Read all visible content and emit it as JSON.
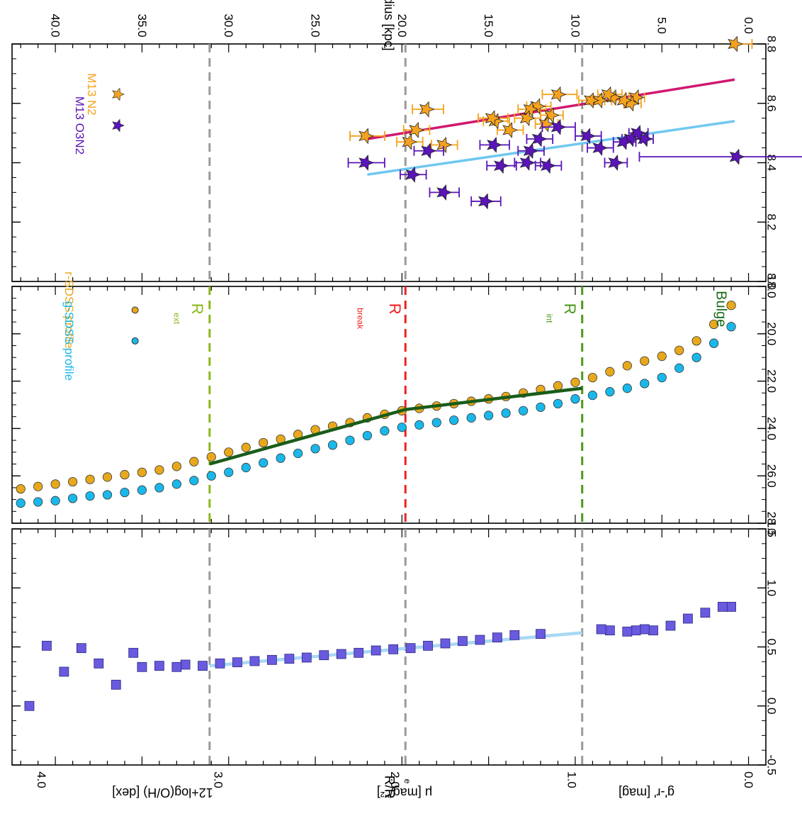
{
  "chart_data": [
    {
      "type": "scatter",
      "panel": "metallicity",
      "xlabel": "Radius [kpc]",
      "ylabel": "12+log(O/H) [dex]",
      "xlim": [
        -1.0,
        42.5
      ],
      "ylim": [
        8.8,
        8.0
      ],
      "yticks": [
        "8.8",
        "8.6",
        "8.4",
        "8.2",
        "8.0"
      ],
      "xticks": [
        "0.0",
        "5.0",
        "10.0",
        "15.0",
        "20.0",
        "25.0",
        "30.0",
        "35.0",
        "40.0"
      ],
      "vlines": [
        9.6,
        19.8,
        31.1
      ],
      "legend": [
        "M13 N2",
        "M13 O3N2"
      ],
      "series": [
        {
          "name": "M13 N2",
          "color": "#f5a21e",
          "marker": "star",
          "x": [
            0.8,
            6.5,
            6.8,
            7.2,
            7.8,
            8.1,
            8.6,
            9.1,
            11.0,
            11.4,
            11.7,
            12.2,
            12.6,
            12.8,
            13.8,
            14.6,
            14.8,
            17.6,
            18.6,
            19.2,
            19.6,
            22.1
          ],
          "y": [
            8.8,
            8.62,
            8.6,
            8.61,
            8.62,
            8.63,
            8.61,
            8.61,
            8.63,
            8.56,
            8.53,
            8.59,
            8.58,
            8.55,
            8.51,
            8.54,
            8.55,
            8.46,
            8.58,
            8.51,
            8.47,
            8.49
          ],
          "xerr": [
            [
              1.0,
              0.0
            ],
            [
              0.5,
              0.4
            ],
            [
              0.6,
              0.4
            ],
            [
              0.6,
              0.5
            ],
            [
              0.7,
              0.5
            ],
            [
              0.8,
              0.6
            ],
            [
              0.7,
              0.6
            ],
            [
              0.8,
              0.7
            ],
            [
              1.1,
              0.9
            ],
            [
              0.7,
              0.6
            ],
            [
              0.7,
              0.6
            ],
            [
              0.8,
              0.6
            ],
            [
              0.9,
              0.7
            ],
            [
              0.8,
              0.7
            ],
            [
              0.8,
              0.7
            ],
            [
              0.8,
              0.7
            ],
            [
              0.9,
              0.8
            ],
            [
              0.8,
              0.7
            ],
            [
              1.0,
              0.8
            ],
            [
              0.8,
              0.7
            ],
            [
              0.8,
              0.7
            ],
            [
              1.1,
              0.9
            ]
          ]
        },
        {
          "name": "M13 O3N2",
          "color": "#5a14b8",
          "marker": "star",
          "x": [
            0.7,
            6.0,
            6.4,
            6.8,
            7.2,
            7.7,
            8.6,
            9.3,
            11.0,
            11.6,
            12.1,
            12.6,
            12.8,
            14.3,
            14.7,
            15.2,
            17.6,
            18.5,
            19.4,
            22.1
          ],
          "y": [
            8.42,
            8.48,
            8.5,
            8.48,
            8.47,
            8.4,
            8.45,
            8.49,
            8.52,
            8.39,
            8.48,
            8.44,
            8.4,
            8.39,
            8.46,
            8.27,
            8.3,
            8.44,
            8.36,
            8.4
          ],
          "xerr": [
            [
              5.8,
              5.6
            ],
            [
              0.5,
              0.5
            ],
            [
              0.6,
              0.5
            ],
            [
              0.6,
              0.5
            ],
            [
              0.7,
              0.6
            ],
            [
              0.7,
              0.6
            ],
            [
              0.8,
              0.7
            ],
            [
              0.8,
              0.7
            ],
            [
              1.0,
              0.9
            ],
            [
              0.8,
              0.7
            ],
            [
              0.8,
              0.7
            ],
            [
              0.8,
              0.7
            ],
            [
              0.8,
              0.7
            ],
            [
              0.9,
              0.8
            ],
            [
              0.9,
              0.8
            ],
            [
              0.9,
              0.8
            ],
            [
              0.9,
              0.8
            ],
            [
              0.9,
              0.8
            ],
            [
              0.8,
              0.7
            ],
            [
              1.1,
              1.0
            ]
          ]
        }
      ],
      "fits": [
        {
          "color": "#d01870",
          "x": [
            0.8,
            22.0
          ],
          "y": [
            8.68,
            8.48
          ]
        },
        {
          "color": "#70c8f0",
          "x": [
            0.8,
            22.0
          ],
          "y": [
            8.54,
            8.36
          ]
        }
      ]
    },
    {
      "type": "scatter",
      "panel": "surface-brightness",
      "ylabel": "μ [mag/''²]",
      "xlim": [
        -1.0,
        42.5
      ],
      "ylim": [
        18.0,
        28.0
      ],
      "yticks": [
        "18.0",
        "20.0",
        "22.0",
        "24.0",
        "26.0",
        "28.0"
      ],
      "legend": [
        "r-SDSS profile",
        "g-SDSS profile"
      ],
      "annotations": [
        "Bulge",
        "R",
        "int",
        "R",
        "break",
        "R",
        "ext"
      ],
      "series": [
        {
          "name": "r-SDSS profile",
          "color": "#e8a81c",
          "marker": "circle",
          "x": [
            1.0,
            2.0,
            3.0,
            4.0,
            5.0,
            6.0,
            7.0,
            8.0,
            9.0,
            10.0,
            11.0,
            12.0,
            13.0,
            14.0,
            15.0,
            16.0,
            17.0,
            18.0,
            19.0,
            20.0,
            21.0,
            22.0,
            23.0,
            24.0,
            25.0,
            26.0,
            27.0,
            28.0,
            29.0,
            30.0,
            31.0,
            32.0,
            33.0,
            34.0,
            35.0,
            36.0,
            37.0,
            38.0,
            39.0,
            40.0,
            41.0,
            42.0
          ],
          "y": [
            18.8,
            19.6,
            20.3,
            20.7,
            20.95,
            21.15,
            21.35,
            21.6,
            21.85,
            22.05,
            22.2,
            22.35,
            22.5,
            22.65,
            22.75,
            22.85,
            22.95,
            23.05,
            23.15,
            23.25,
            23.4,
            23.55,
            23.75,
            23.9,
            24.05,
            24.25,
            24.45,
            24.6,
            24.8,
            25.0,
            25.2,
            25.4,
            25.6,
            25.75,
            25.85,
            25.95,
            26.05,
            26.15,
            26.25,
            26.35,
            26.45,
            26.55
          ]
        },
        {
          "name": "g-SDSS profile",
          "color": "#1ab8ea",
          "marker": "circle",
          "x": [
            1.0,
            2.0,
            3.0,
            4.0,
            5.0,
            6.0,
            7.0,
            8.0,
            9.0,
            10.0,
            11.0,
            12.0,
            13.0,
            14.0,
            15.0,
            16.0,
            17.0,
            18.0,
            19.0,
            20.0,
            21.0,
            22.0,
            23.0,
            24.0,
            25.0,
            26.0,
            27.0,
            28.0,
            29.0,
            30.0,
            31.0,
            32.0,
            33.0,
            34.0,
            35.0,
            36.0,
            37.0,
            38.0,
            39.0,
            40.0,
            41.0,
            42.0
          ],
          "y": [
            19.7,
            20.4,
            21.0,
            21.45,
            21.85,
            22.1,
            22.3,
            22.45,
            22.6,
            22.75,
            22.95,
            23.1,
            23.25,
            23.35,
            23.45,
            23.55,
            23.65,
            23.75,
            23.85,
            23.95,
            24.1,
            24.3,
            24.5,
            24.7,
            24.85,
            25.05,
            25.25,
            25.45,
            25.65,
            25.85,
            26.0,
            26.2,
            26.35,
            26.5,
            26.6,
            26.7,
            26.8,
            26.85,
            26.95,
            27.05,
            27.1,
            27.15
          ]
        }
      ],
      "fits": [
        {
          "color": "#1a5c1a",
          "x": [
            9.6,
            19.8,
            31.1
          ],
          "y": [
            22.3,
            23.2,
            25.5
          ]
        }
      ],
      "vlines": [
        {
          "x": 9.6,
          "color": "#4a9a1a"
        },
        {
          "x": 19.8,
          "color": "#ee2222"
        },
        {
          "x": 31.1,
          "color": "#8ab81a"
        }
      ]
    },
    {
      "type": "scatter",
      "panel": "color-profile",
      "xlabel": "R/R",
      "xlabel_sub": "e",
      "ylabel": "g'-r' [mag]",
      "xlim": [
        -1.0,
        42.5
      ],
      "ylim": [
        1.5,
        -0.5
      ],
      "yticks": [
        "1.5",
        "1.0",
        "0.5",
        "0.0",
        "-0.5"
      ],
      "xticks_top": [
        "0.0",
        "1.0",
        "2.0",
        "3.0",
        "4.0"
      ],
      "series": [
        {
          "name": "",
          "color": "#6a5adf",
          "marker": "square",
          "x": [
            1.0,
            1.5,
            2.5,
            3.5,
            4.5,
            5.5,
            6.0,
            6.5,
            7.0,
            8.0,
            8.5,
            12.0,
            13.5,
            14.5,
            15.5,
            16.5,
            17.5,
            18.5,
            19.5,
            20.5,
            21.5,
            22.5,
            23.5,
            24.5,
            25.5,
            26.5,
            27.5,
            28.5,
            29.5,
            30.5,
            31.5,
            32.5,
            33.0,
            34.0,
            35.0,
            35.5,
            36.5,
            37.5,
            38.5,
            39.5,
            40.5,
            41.5
          ],
          "y": [
            0.84,
            0.84,
            0.79,
            0.74,
            0.68,
            0.64,
            0.65,
            0.64,
            0.63,
            0.64,
            0.65,
            0.61,
            0.6,
            0.58,
            0.56,
            0.55,
            0.53,
            0.51,
            0.49,
            0.48,
            0.47,
            0.45,
            0.44,
            0.43,
            0.41,
            0.4,
            0.39,
            0.38,
            0.37,
            0.36,
            0.34,
            0.35,
            0.33,
            0.34,
            0.33,
            0.45,
            0.18,
            0.36,
            0.49,
            0.29,
            0.51,
            0.0
          ]
        }
      ],
      "fits": [
        {
          "color": "#a8d8f4",
          "x": [
            9.6,
            31.1
          ],
          "y": [
            0.62,
            0.34
          ]
        }
      ],
      "vlines": [
        9.6,
        19.8,
        31.1
      ]
    }
  ]
}
